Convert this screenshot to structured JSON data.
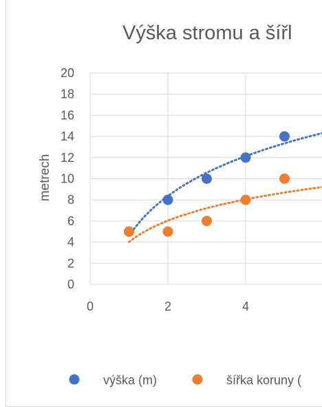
{
  "chart_data": {
    "type": "scatter",
    "title": "Výška stromu a šířl",
    "xlabel": "",
    "ylabel": "metrech",
    "xlim": [
      0,
      6
    ],
    "ylim": [
      0,
      20
    ],
    "x_ticks": [
      "0",
      "2",
      "4"
    ],
    "y_ticks": [
      "0",
      "2",
      "4",
      "6",
      "8",
      "10",
      "12",
      "14",
      "16",
      "18",
      "20"
    ],
    "grid": "horizontal",
    "legend_position": "bottom",
    "series": [
      {
        "name": "výška (m)",
        "color": "#4472c4",
        "points": [
          [
            1,
            5
          ],
          [
            2,
            8
          ],
          [
            3,
            10
          ],
          [
            4,
            12
          ],
          [
            5,
            14
          ]
        ],
        "trendline": "logarithmic"
      },
      {
        "name": "šířka koruny (",
        "color": "#ed7d31",
        "points": [
          [
            1,
            5
          ],
          [
            2,
            5
          ],
          [
            3,
            6
          ],
          [
            4,
            8
          ],
          [
            5,
            10
          ]
        ],
        "trendline": "logarithmic"
      }
    ]
  }
}
